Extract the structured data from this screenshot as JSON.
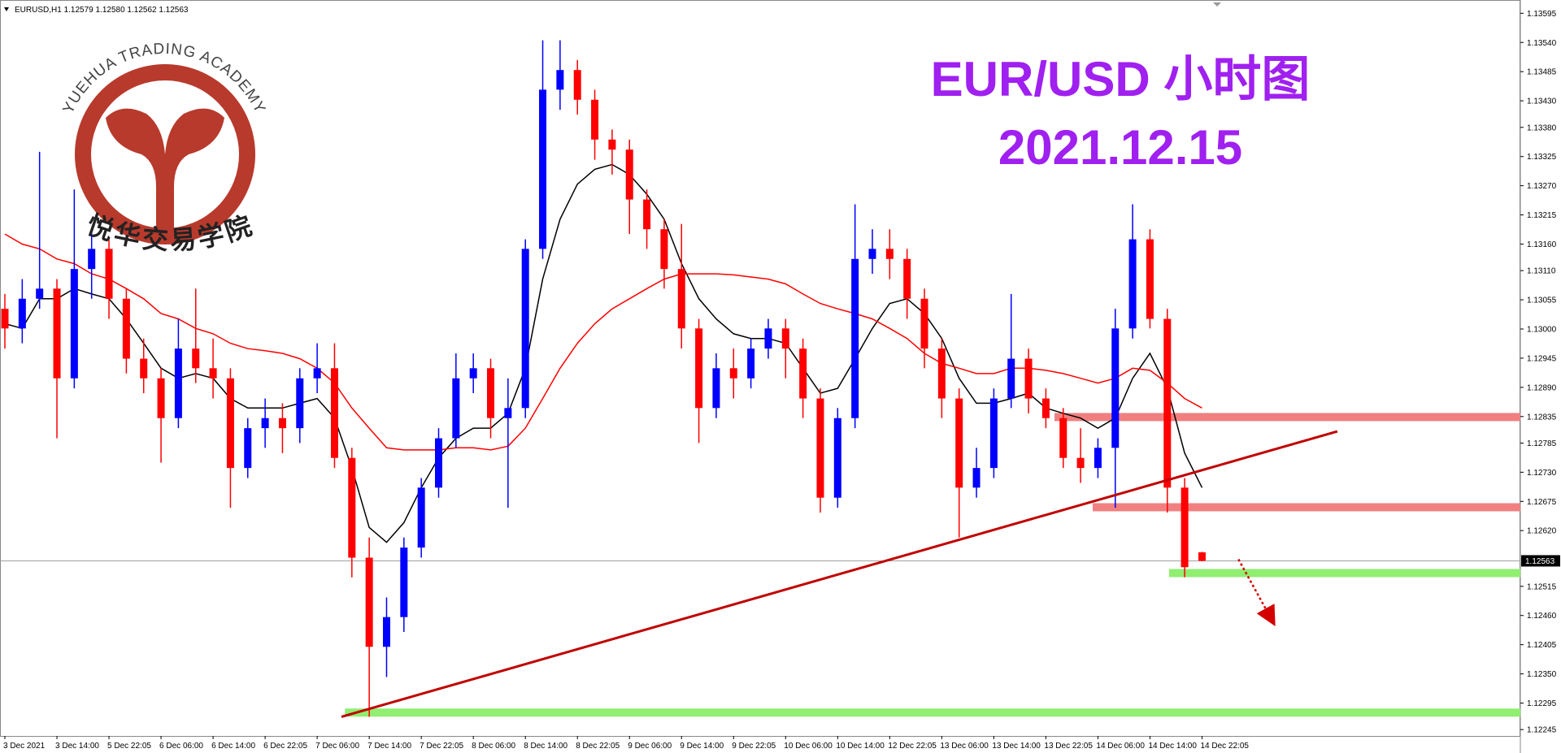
{
  "chart_data": {
    "type": "candlestick",
    "header": "EURUSD,H1  1.12579 1.12580 1.12562 1.12563",
    "title": "EUR/USD 小时图",
    "subtitle": "2021.12.15",
    "logo_text": "YUEHUA TRADING ACADEMY",
    "logo_name": "悦华交易学院",
    "categories": [
      "3 Dec 2021",
      null,
      null,
      "3 Dec 14:00",
      null,
      null,
      "5 Dec 22:05",
      null,
      null,
      "6 Dec 06:00",
      null,
      null,
      "6 Dec 14:00",
      null,
      null,
      "6 Dec 22:05",
      null,
      null,
      "7 Dec 06:00",
      null,
      null,
      "7 Dec 14:00",
      null,
      null,
      "7 Dec 22:05",
      null,
      null,
      "8 Dec 06:00",
      null,
      null,
      "8 Dec 14:00",
      null,
      null,
      "8 Dec 22:05",
      null,
      null,
      "9 Dec 06:00",
      null,
      null,
      "9 Dec 14:00",
      null,
      null,
      "9 Dec 22:05",
      null,
      null,
      "10 Dec 06:00",
      null,
      null,
      "10 Dec 14:00",
      null,
      null,
      "12 Dec 22:05",
      null,
      null,
      "13 Dec 06:00",
      null,
      null,
      "13 Dec 14:00",
      null,
      null,
      "13 Dec 22:05",
      null,
      null,
      "14 Dec 06:00",
      null,
      null,
      "14 Dec 14:00",
      null,
      null,
      "14 Dec 22:05"
    ],
    "open": [
      1.13038,
      1.13001,
      1.13057,
      1.13076,
      1.12907,
      1.13113,
      1.13151,
      1.13057,
      1.12944,
      1.12907,
      1.12832,
      1.12963,
      1.12926,
      1.12907,
      1.12738,
      1.12813,
      1.12832,
      1.12813,
      1.12907,
      1.12926,
      1.12757,
      1.12569,
      1.12401,
      1.12457,
      1.12588,
      1.12701,
      1.12794,
      1.12907,
      1.12926,
      1.12832,
      1.12851,
      1.13151,
      1.13451,
      1.13488,
      1.13432,
      1.13357,
      1.13338,
      1.13244,
      1.13188,
      1.13113,
      1.13001,
      1.12851,
      1.12926,
      1.12907,
      1.12963,
      1.13001,
      1.12963,
      1.12869,
      1.12682,
      1.12832,
      1.13132,
      1.13151,
      1.13132,
      1.13057,
      1.12963,
      1.12869,
      1.12701,
      1.12738,
      1.12869,
      1.12944,
      1.12869,
      1.12832,
      1.12757,
      1.12738,
      1.12776,
      1.13001,
      1.13169,
      1.13019,
      1.12701,
      1.12579
    ],
    "high": [
      1.13066,
      1.13094,
      1.13334,
      1.13094,
      1.13263,
      1.13188,
      1.13169,
      1.13076,
      1.12982,
      1.12926,
      1.13019,
      1.13076,
      1.12982,
      1.12926,
      1.12832,
      1.12869,
      1.1286,
      1.12926,
      1.12973,
      1.12973,
      1.12776,
      1.12607,
      1.12494,
      1.12607,
      1.12719,
      1.12813,
      1.12954,
      1.12954,
      1.12944,
      1.12907,
      1.13169,
      1.13544,
      1.13544,
      1.13507,
      1.13451,
      1.13376,
      1.13357,
      1.13263,
      1.13207,
      1.13198,
      1.13019,
      1.12954,
      1.12963,
      1.12982,
      1.13019,
      1.13019,
      1.12982,
      1.12888,
      1.12851,
      1.13235,
      1.13188,
      1.13188,
      1.13151,
      1.13076,
      1.12982,
      1.12888,
      1.12776,
      1.12888,
      1.13066,
      1.12963,
      1.12888,
      1.12851,
      1.12813,
      1.12794,
      1.13038,
      1.13235,
      1.13188,
      1.13038,
      1.12719,
      1.1258
    ],
    "low": [
      1.12963,
      1.12973,
      1.13038,
      1.12794,
      1.12888,
      1.13057,
      1.13019,
      1.12916,
      1.12879,
      1.12748,
      1.12813,
      1.12898,
      1.12869,
      1.12663,
      1.12719,
      1.12776,
      1.12766,
      1.12785,
      1.12879,
      1.12738,
      1.12532,
      1.12269,
      1.12344,
      1.12429,
      1.12569,
      1.12682,
      1.12776,
      1.12879,
      1.12794,
      1.12663,
      1.12832,
      1.13132,
      1.13413,
      1.13404,
      1.13319,
      1.13291,
      1.13179,
      1.13151,
      1.13076,
      1.12963,
      1.12785,
      1.12832,
      1.12869,
      1.12888,
      1.12944,
      1.12907,
      1.12832,
      1.12654,
      1.12663,
      1.12813,
      1.13104,
      1.13094,
      1.13019,
      1.12926,
      1.12832,
      1.12607,
      1.12682,
      1.12719,
      1.12851,
      1.12841,
      1.12813,
      1.12738,
      1.1271,
      1.12719,
      1.12663,
      1.12982,
      1.13001,
      1.12654,
      1.12532,
      1.12562
    ],
    "close": [
      1.13001,
      1.13057,
      1.13076,
      1.12907,
      1.13113,
      1.13151,
      1.13057,
      1.12944,
      1.12907,
      1.12832,
      1.12963,
      1.12926,
      1.12907,
      1.12738,
      1.12813,
      1.12832,
      1.12813,
      1.12907,
      1.12926,
      1.12757,
      1.12569,
      1.12401,
      1.12457,
      1.12588,
      1.12701,
      1.12794,
      1.12907,
      1.12926,
      1.12832,
      1.12851,
      1.13151,
      1.13451,
      1.13488,
      1.13432,
      1.13357,
      1.13338,
      1.13244,
      1.13188,
      1.13113,
      1.13001,
      1.12851,
      1.12926,
      1.12907,
      1.12963,
      1.13001,
      1.12963,
      1.12869,
      1.12682,
      1.12832,
      1.13132,
      1.13151,
      1.13132,
      1.13057,
      1.12963,
      1.12869,
      1.12701,
      1.12738,
      1.12869,
      1.12944,
      1.12869,
      1.12832,
      1.12757,
      1.12738,
      1.12776,
      1.13001,
      1.13169,
      1.13019,
      1.12701,
      1.12551,
      1.12563
    ],
    "up_color": "#0000ff",
    "down_color": "#ff0000",
    "overlays": [
      {
        "color": "#000000",
        "values": [
          1.1301,
          1.13001,
          1.13057,
          1.13057,
          1.13076,
          1.13066,
          1.13057,
          1.13019,
          1.12973,
          1.12926,
          1.12907,
          1.12916,
          1.12907,
          1.12869,
          1.12851,
          1.12851,
          1.12851,
          1.1286,
          1.12869,
          1.12832,
          1.12738,
          1.12626,
          1.12598,
          1.12635,
          1.12701,
          1.12757,
          1.12794,
          1.12813,
          1.12813,
          1.12841,
          1.12926,
          1.13094,
          1.13207,
          1.13273,
          1.13301,
          1.1331,
          1.13291,
          1.13254,
          1.13207,
          1.13123,
          1.13057,
          1.13019,
          1.12991,
          1.12982,
          1.12982,
          1.12973,
          1.12926,
          1.12879,
          1.12888,
          1.12944,
          1.13001,
          1.13048,
          1.13057,
          1.13029,
          1.12982,
          1.12907,
          1.1286,
          1.1286,
          1.12869,
          1.12879,
          1.12851,
          1.12841,
          1.12832,
          1.12813,
          1.12832,
          1.12907,
          1.12954,
          1.12888,
          1.12766,
          1.12701
        ]
      },
      {
        "color": "#ff0000",
        "values": [
          1.13179,
          1.1316,
          1.13151,
          1.13132,
          1.13123,
          1.13104,
          1.13094,
          1.13076,
          1.13057,
          1.13029,
          1.13019,
          1.13001,
          1.12991,
          1.12973,
          1.12963,
          1.12959,
          1.12954,
          1.12944,
          1.12926,
          1.12898,
          1.12851,
          1.12813,
          1.12776,
          1.12772,
          1.12772,
          1.12772,
          1.12776,
          1.12776,
          1.12772,
          1.12779,
          1.12813,
          1.12869,
          1.12926,
          1.12973,
          1.1301,
          1.13038,
          1.13057,
          1.13076,
          1.13094,
          1.13104,
          1.13104,
          1.13104,
          1.13102,
          1.13098,
          1.13094,
          1.13085,
          1.13066,
          1.13048,
          1.13038,
          1.13029,
          1.13019,
          1.13001,
          1.12982,
          1.12954,
          1.12935,
          1.12926,
          1.12916,
          1.12916,
          1.12926,
          1.12926,
          1.12922,
          1.12916,
          1.12907,
          1.12898,
          1.12907,
          1.12926,
          1.12922,
          1.12898,
          1.12869,
          1.12851
        ]
      }
    ],
    "zones": [
      {
        "level": 1.12834,
        "from": 60.5,
        "color": "#f08080"
      },
      {
        "level": 1.12664,
        "from": 62.7,
        "color": "#f08080"
      },
      {
        "level": 1.1254,
        "from": 67.1,
        "color": "#90ee70"
      },
      {
        "level": 1.12277,
        "from": 19.6,
        "color": "#90ee70"
      }
    ],
    "trendline": {
      "x": [
        19.4,
        76.8
      ],
      "y": [
        1.12269,
        1.12807
      ],
      "color": "#c00000"
    },
    "arrow": {
      "x": [
        71.1,
        73.0
      ],
      "y": [
        1.12566,
        1.12453
      ],
      "color": "#d40000"
    },
    "ylim": [
      1.12233,
      1.1362
    ],
    "yticks": [
      1.13595,
      {
        "value": 1.1354,
        "label": "1.13540"
      },
      1.13485,
      {
        "value": 1.1343,
        "label": "1.13430"
      },
      {
        "value": 1.1338,
        "label": "1.13380"
      },
      1.13325,
      {
        "value": 1.1327,
        "label": "1.13270"
      },
      1.13215,
      {
        "value": 1.1316,
        "label": "1.13160"
      },
      {
        "value": 1.1311,
        "label": "1.13110"
      },
      1.13055,
      {
        "value": 1.13,
        "label": "1.13000"
      },
      1.12945,
      {
        "value": 1.1289,
        "label": "1.12890"
      },
      1.12835,
      1.12785,
      {
        "value": 1.1273,
        "label": "1.12730"
      },
      1.12675,
      {
        "value": 1.1262,
        "label": "1.12620"
      },
      1.12515,
      {
        "value": 1.1246,
        "label": "1.12460"
      },
      1.12405,
      {
        "value": 1.1235,
        "label": "1.12350"
      },
      1.12295,
      1.12245
    ],
    "grid": false
  }
}
